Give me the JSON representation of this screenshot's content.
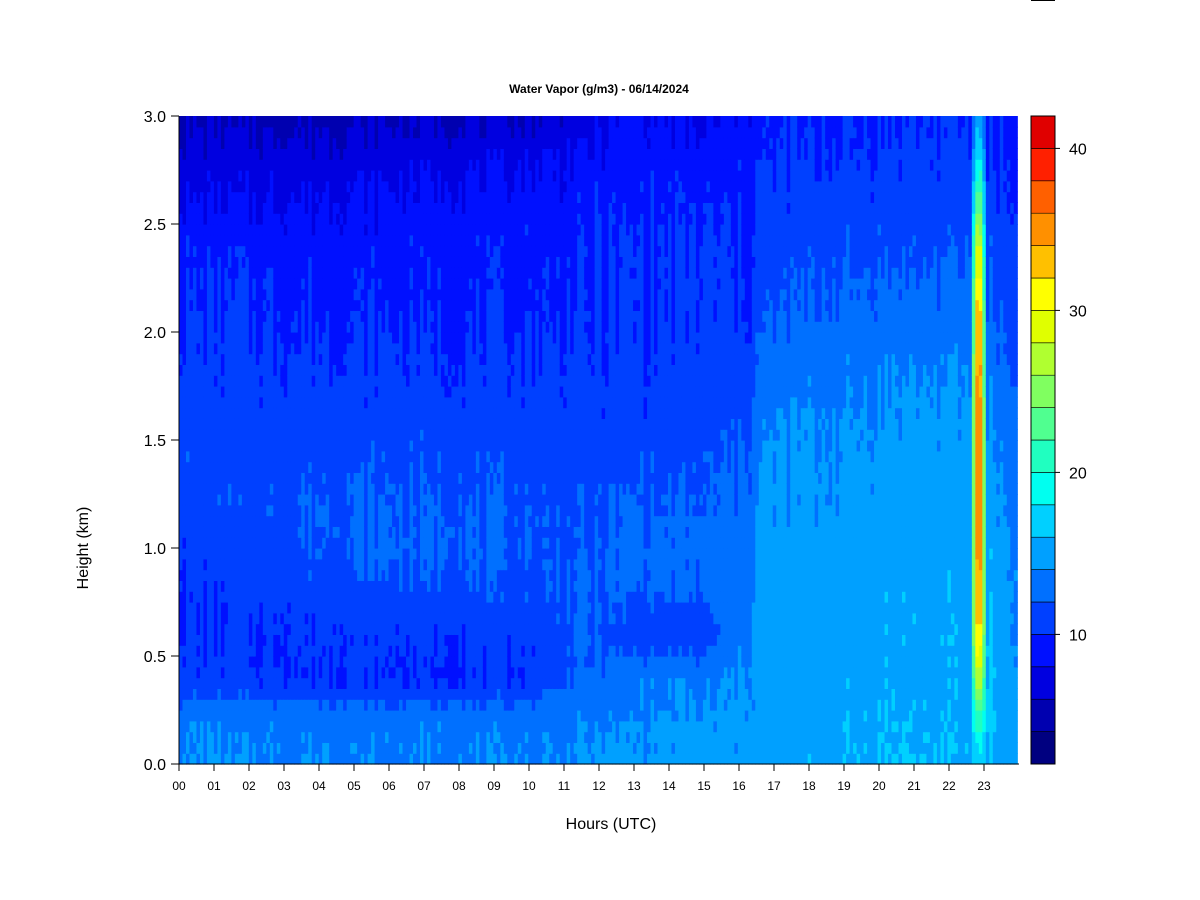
{
  "chart_data": {
    "type": "heatmap",
    "title": "Water Vapor (g/m3) - 06/14/2024",
    "xlabel": "Hours (UTC)",
    "ylabel": "Height (km)",
    "xlim": [
      0,
      24
    ],
    "ylim": [
      0.0,
      3.0
    ],
    "x_ticks": [
      "00",
      "01",
      "02",
      "03",
      "04",
      "05",
      "06",
      "07",
      "08",
      "09",
      "10",
      "11",
      "12",
      "13",
      "14",
      "15",
      "16",
      "17",
      "18",
      "19",
      "20",
      "21",
      "22",
      "23"
    ],
    "y_ticks": [
      "0.0",
      "0.5",
      "1.0",
      "1.5",
      "2.0",
      "2.5",
      "3.0"
    ],
    "colorbar": {
      "ticks": [
        "10",
        "20",
        "30",
        "40"
      ],
      "tick_values": [
        10,
        20,
        30,
        40
      ],
      "range": [
        2,
        42
      ],
      "levels": [
        2,
        4,
        6,
        8,
        10,
        12,
        14,
        16,
        18,
        20,
        22,
        24,
        26,
        28,
        30,
        32,
        34,
        36,
        38,
        40,
        42
      ],
      "colors": [
        "#000080",
        "#0000B0",
        "#0000E0",
        "#0010FF",
        "#0040FF",
        "#0070FF",
        "#00A0FF",
        "#00D0FF",
        "#00FFF0",
        "#20FFC0",
        "#50FF90",
        "#80FF60",
        "#B0FF30",
        "#E0FF00",
        "#FFFF00",
        "#FFC000",
        "#FF9000",
        "#FF6000",
        "#FF2000",
        "#E00000",
        "#B00000",
        "#800000"
      ]
    },
    "profiles": [
      {
        "hour": 0,
        "values": [
          14.0,
          13.8,
          10.5,
          10.0,
          10.0,
          10.5,
          11.0,
          11.5,
          11.0,
          10.5,
          10.2,
          9.8,
          9.5,
          8.0,
          7.0,
          5.5
        ]
      },
      {
        "hour": 2,
        "values": [
          14.0,
          13.6,
          10.2,
          10.0,
          10.5,
          11.0,
          11.5,
          11.2,
          11.0,
          10.5,
          10.2,
          9.8,
          9.4,
          8.0,
          7.0,
          5.5
        ]
      },
      {
        "hour": 4,
        "values": [
          14.0,
          13.5,
          10.0,
          10.2,
          11.0,
          12.0,
          12.2,
          11.5,
          11.0,
          10.5,
          10.0,
          9.6,
          9.2,
          8.2,
          7.0,
          5.5
        ]
      },
      {
        "hour": 6,
        "values": [
          14.0,
          13.4,
          10.0,
          10.3,
          11.6,
          12.3,
          12.1,
          11.6,
          11.0,
          10.5,
          10.0,
          9.5,
          9.2,
          8.3,
          7.2,
          5.6
        ]
      },
      {
        "hour": 8,
        "values": [
          14.0,
          13.4,
          10.0,
          10.3,
          11.7,
          12.3,
          12.0,
          11.5,
          11.0,
          10.4,
          10.0,
          9.5,
          9.3,
          8.6,
          7.4,
          5.8
        ]
      },
      {
        "hour": 10,
        "values": [
          14.0,
          13.5,
          10.2,
          10.5,
          11.5,
          12.0,
          11.8,
          11.4,
          11.0,
          10.4,
          10.0,
          9.6,
          9.4,
          8.8,
          7.8,
          6.0
        ]
      },
      {
        "hour": 11.5,
        "values": [
          14.0,
          13.8,
          12.0,
          12.2,
          12.0,
          11.8,
          11.6,
          11.2,
          10.8,
          10.4,
          10.0,
          9.8,
          9.6,
          9.2,
          8.4,
          6.6
        ]
      },
      {
        "hour": 13,
        "values": [
          14.5,
          14.0,
          13.5,
          10.8,
          12.2,
          12.5,
          12.0,
          11.4,
          10.8,
          10.5,
          10.2,
          10.2,
          10.0,
          9.6,
          9.0,
          8.5
        ]
      },
      {
        "hour": 15,
        "values": [
          14.6,
          14.2,
          13.5,
          10.6,
          12.2,
          12.6,
          12.0,
          11.6,
          11.0,
          10.6,
          10.2,
          10.2,
          10.0,
          9.6,
          8.8,
          7.4
        ]
      },
      {
        "hour": 16.3,
        "values": [
          14.6,
          14.4,
          14.2,
          14.0,
          13.6,
          13.2,
          12.6,
          12.2,
          11.8,
          11.0,
          10.4,
          10.0,
          9.9,
          9.7,
          9.4,
          8.6
        ]
      },
      {
        "hour": 16.6,
        "values": [
          15.4,
          15.0,
          14.8,
          14.8,
          14.6,
          14.5,
          14.2,
          14.0,
          13.8,
          12.8,
          12.0,
          11.4,
          11.0,
          10.4,
          10.0,
          9.4
        ]
      },
      {
        "hour": 18.5,
        "values": [
          15.6,
          15.4,
          15.2,
          15.0,
          14.8,
          14.6,
          14.4,
          14.2,
          14.0,
          13.4,
          12.6,
          12.0,
          11.4,
          10.8,
          10.2,
          9.6
        ]
      },
      {
        "hour": 20.5,
        "values": [
          16.2,
          15.8,
          15.6,
          15.5,
          15.6,
          15.4,
          15.0,
          14.8,
          14.4,
          14.0,
          13.0,
          12.4,
          11.6,
          11.0,
          10.4,
          9.8
        ]
      },
      {
        "hour": 22.6,
        "values": [
          15.8,
          15.6,
          15.4,
          15.6,
          15.4,
          15.2,
          15.0,
          14.8,
          14.4,
          14.0,
          13.0,
          12.4,
          11.6,
          11.0,
          10.6,
          10.0
        ]
      },
      {
        "hour": 22.85,
        "values": [
          16,
          22,
          30,
          36,
          38,
          39,
          40,
          41,
          40,
          39,
          38,
          36,
          32,
          26,
          20,
          16
        ]
      },
      {
        "hour": 23.1,
        "values": [
          15.8,
          16.6,
          16.6,
          16.2,
          15.8,
          15.6,
          15.4,
          15.0,
          14.6,
          13.8,
          13.0,
          12.2,
          11.6,
          11.0,
          10.4,
          10.0
        ]
      },
      {
        "hour": 23.95,
        "values": [
          14.4,
          14.2,
          14.0,
          13.8,
          13.6,
          13.4,
          13.0,
          12.6,
          12.2,
          11.6,
          11.0,
          10.6,
          10.2,
          9.8,
          9.4,
          9.0
        ]
      }
    ],
    "profile_heights": [
      0.0,
      0.2,
      0.4,
      0.6,
      0.8,
      1.0,
      1.2,
      1.4,
      1.6,
      1.8,
      2.0,
      2.2,
      2.4,
      2.6,
      2.8,
      3.0
    ],
    "data_end_hour": 23.95
  }
}
